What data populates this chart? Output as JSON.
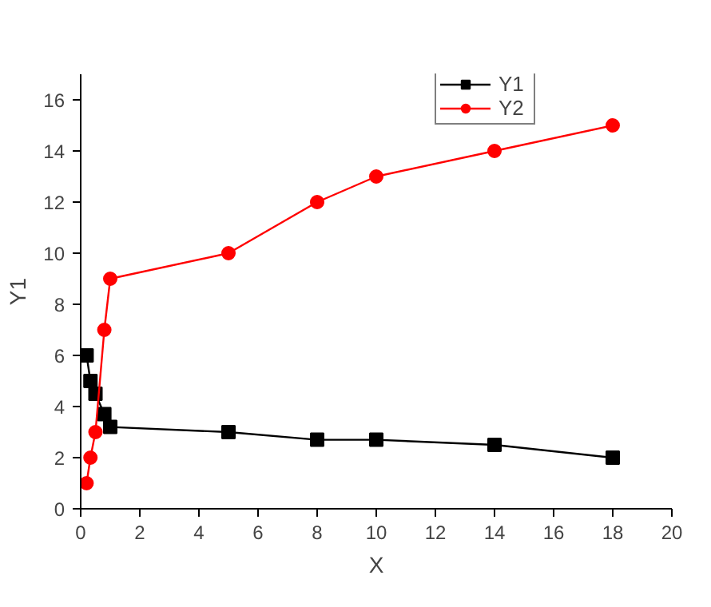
{
  "chart_data": {
    "type": "line",
    "xlabel": "X",
    "ylabel": "Y1",
    "xlim": [
      0,
      20
    ],
    "ylim": [
      0,
      17
    ],
    "xticks": [
      0,
      2,
      4,
      6,
      8,
      10,
      12,
      14,
      16,
      18,
      20
    ],
    "yticks": [
      0,
      2,
      4,
      6,
      8,
      10,
      12,
      14,
      16
    ],
    "grid": false,
    "legend": "top right",
    "series": [
      {
        "name": "Y1",
        "color": "#000000",
        "marker": "square",
        "x": [
          0.2,
          0.33,
          0.5,
          0.8,
          1,
          5,
          8,
          10,
          14,
          18
        ],
        "values": [
          6,
          5,
          4.5,
          3.7,
          3.2,
          3,
          2.7,
          2.7,
          2.5,
          2
        ]
      },
      {
        "name": "Y2",
        "color": "#ff0000",
        "marker": "circle",
        "x": [
          0.2,
          0.33,
          0.5,
          0.8,
          1,
          5,
          8,
          10,
          14,
          18
        ],
        "values": [
          1,
          2,
          3,
          7,
          9,
          10,
          12,
          13,
          14,
          15
        ]
      }
    ]
  }
}
